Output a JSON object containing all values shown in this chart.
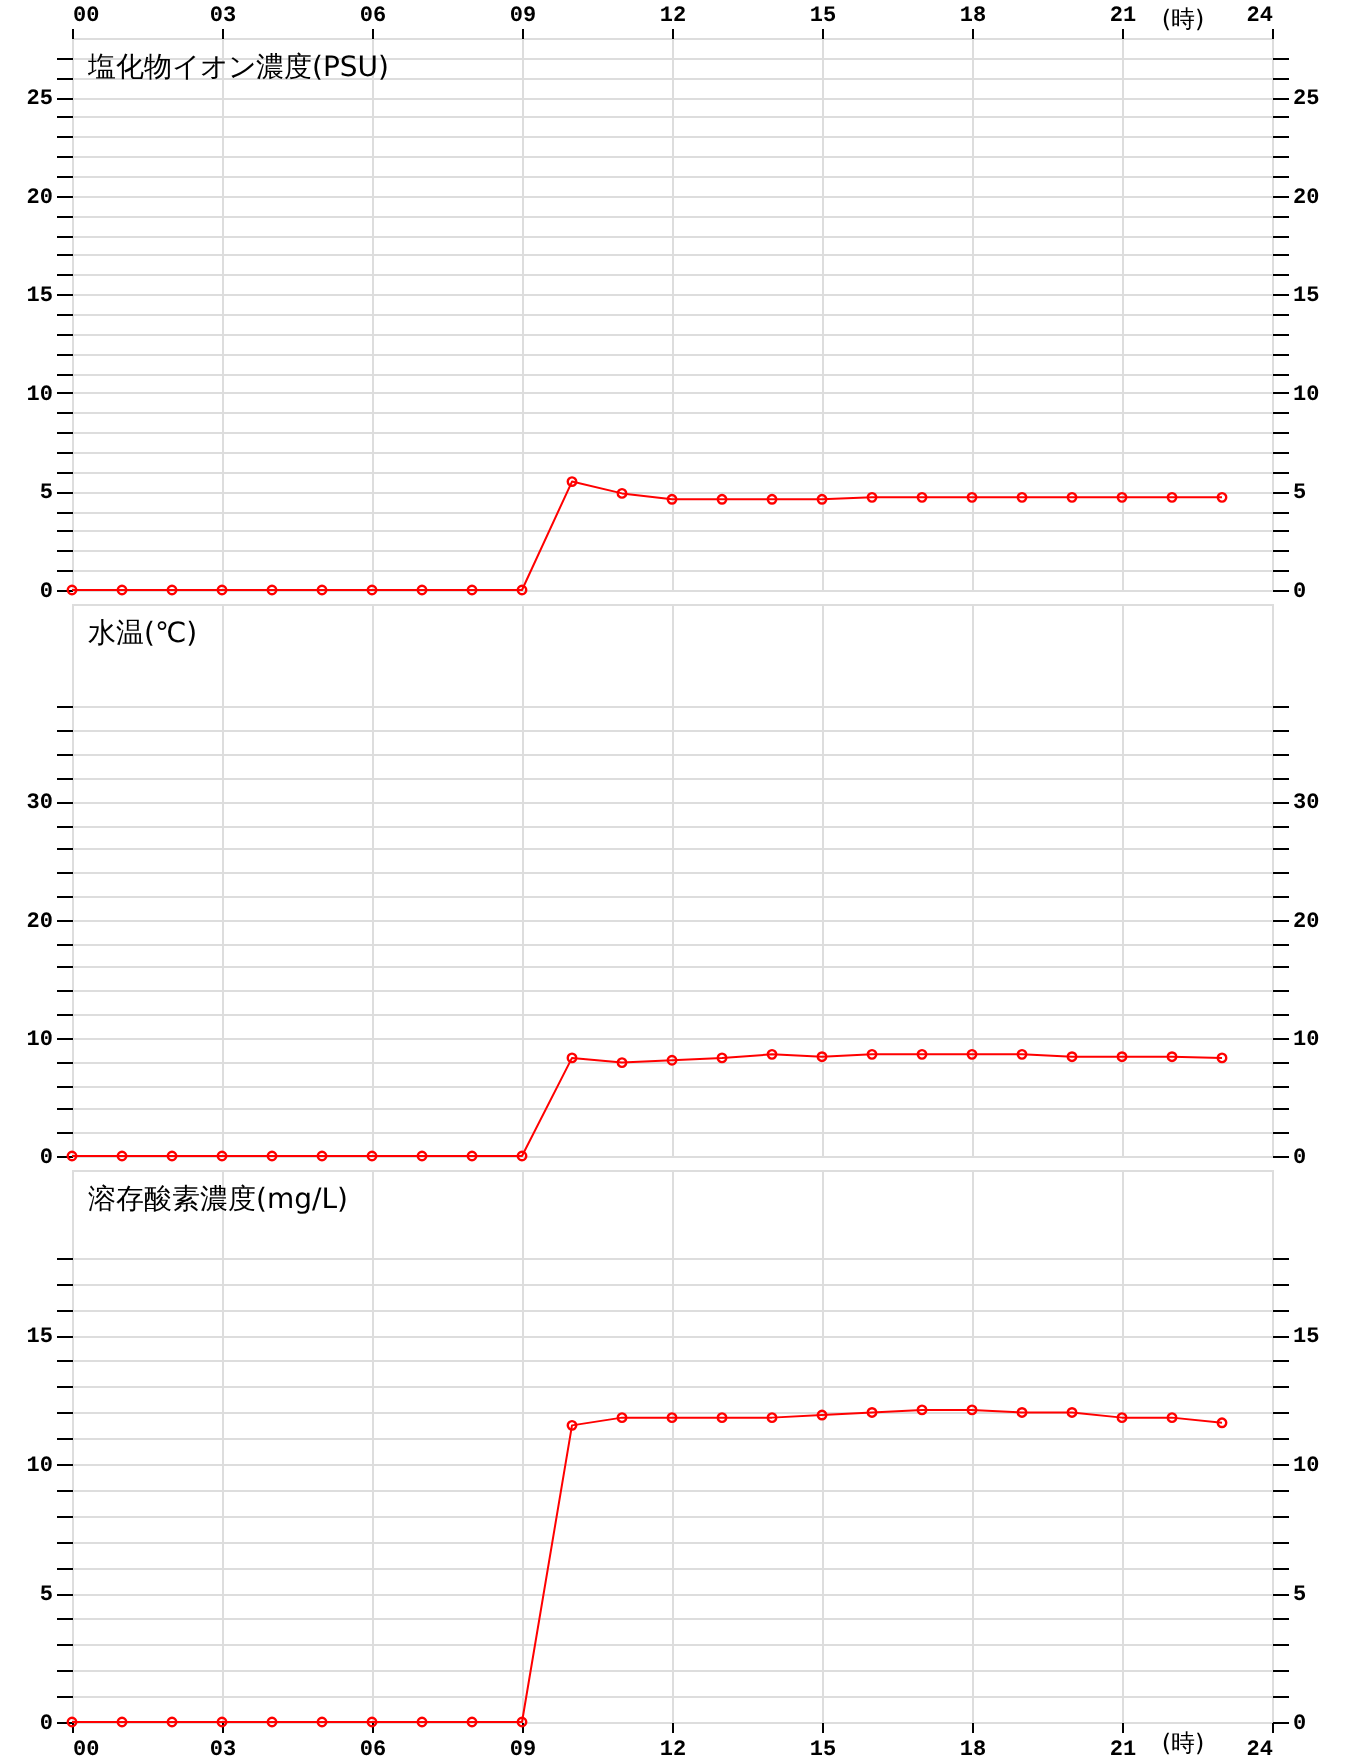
{
  "chart_data": [
    {
      "type": "line",
      "title": "塩化物イオン濃度(PSU)",
      "x": [
        0,
        1,
        2,
        3,
        4,
        5,
        6,
        7,
        8,
        9,
        10,
        11,
        12,
        13,
        14,
        15,
        16,
        17,
        18,
        19,
        20,
        21,
        22,
        23
      ],
      "series": [
        {
          "color": "#ff0000",
          "values": [
            0,
            0,
            0,
            0,
            0,
            0,
            0,
            0,
            0,
            0,
            5.5,
            4.9,
            4.6,
            4.6,
            4.6,
            4.6,
            4.7,
            4.7,
            4.7,
            4.7,
            4.7,
            4.7,
            4.7,
            4.7
          ]
        }
      ],
      "xlim": [
        0,
        24
      ],
      "xticks": [
        {
          "value": 0,
          "label": "00"
        },
        {
          "value": 3,
          "label": "03"
        },
        {
          "value": 6,
          "label": "06"
        },
        {
          "value": 9,
          "label": "09"
        },
        12,
        15,
        18,
        21,
        24
      ],
      "xlabel": "(時)",
      "ylim": [
        0,
        28
      ],
      "yticks": [
        0,
        {
          "value": 1,
          "label": null
        },
        {
          "value": 2,
          "label": null
        },
        {
          "value": 3,
          "label": null
        },
        {
          "value": 4,
          "label": null
        },
        5,
        {
          "value": 6,
          "label": null
        },
        {
          "value": 7,
          "label": null
        },
        {
          "value": 8,
          "label": null
        },
        {
          "value": 9,
          "label": null
        },
        10,
        {
          "value": 11,
          "label": null
        },
        {
          "value": 12,
          "label": null
        },
        {
          "value": 13,
          "label": null
        },
        {
          "value": 14,
          "label": null
        },
        15,
        {
          "value": 16,
          "label": null
        },
        {
          "value": 17,
          "label": null
        },
        {
          "value": 18,
          "label": null
        },
        {
          "value": 19,
          "label": null
        },
        20,
        {
          "value": 21,
          "label": null
        },
        {
          "value": 22,
          "label": null
        },
        {
          "value": 23,
          "label": null
        },
        {
          "value": 24,
          "label": null
        },
        25,
        {
          "value": 26,
          "label": null
        },
        {
          "value": 27,
          "label": null
        }
      ],
      "y2lim": [
        0,
        28
      ],
      "y2ticks": [
        0,
        {
          "value": 1,
          "label": null
        },
        {
          "value": 2,
          "label": null
        },
        {
          "value": 3,
          "label": null
        },
        {
          "value": 4,
          "label": null
        },
        5,
        {
          "value": 6,
          "label": null
        },
        {
          "value": 7,
          "label": null
        },
        {
          "value": 8,
          "label": null
        },
        {
          "value": 9,
          "label": null
        },
        10,
        {
          "value": 11,
          "label": null
        },
        {
          "value": 12,
          "label": null
        },
        {
          "value": 13,
          "label": null
        },
        {
          "value": 14,
          "label": null
        },
        15,
        {
          "value": 16,
          "label": null
        },
        {
          "value": 17,
          "label": null
        },
        {
          "value": 18,
          "label": null
        },
        {
          "value": 19,
          "label": null
        },
        20,
        {
          "value": 21,
          "label": null
        },
        {
          "value": 22,
          "label": null
        },
        {
          "value": 23,
          "label": null
        },
        {
          "value": 24,
          "label": null
        },
        25,
        {
          "value": 26,
          "label": null
        },
        {
          "value": 27,
          "label": null
        }
      ],
      "grid": true,
      "marker": "circle",
      "line_style": "solid"
    },
    {
      "type": "line",
      "title": "水温(℃)",
      "categories": [
        null,
        null,
        null,
        null,
        null,
        null,
        null,
        null,
        null,
        null,
        null,
        null,
        null,
        null,
        null,
        null,
        null,
        null,
        null,
        null,
        null,
        null,
        null,
        null
      ],
      "series": [
        {
          "color": "#ff0000",
          "values": [
            0,
            0,
            0,
            0,
            0,
            0,
            0,
            0,
            0,
            0,
            8.3,
            7.9,
            8.1,
            8.3,
            8.6,
            8.4,
            8.6,
            8.6,
            8.6,
            8.6,
            8.4,
            8.4,
            8.4,
            8.3
          ]
        }
      ],
      "ylim": [
        0,
        46.7
      ],
      "yticks": [
        0,
        {
          "value": 2,
          "label": null
        },
        {
          "value": 4,
          "label": null
        },
        {
          "value": 6,
          "label": null
        },
        {
          "value": 8,
          "label": null
        },
        10,
        {
          "value": 12,
          "label": null
        },
        {
          "value": 14,
          "label": null
        },
        {
          "value": 16,
          "label": null
        },
        {
          "value": 18,
          "label": null
        },
        20,
        {
          "value": 22,
          "label": null
        },
        {
          "value": 24,
          "label": null
        },
        {
          "value": 26,
          "label": null
        },
        {
          "value": 28,
          "label": null
        },
        30,
        {
          "value": 32,
          "label": null
        },
        {
          "value": 34,
          "label": null
        },
        {
          "value": 36,
          "label": null
        },
        {
          "value": 38,
          "label": null
        }
      ],
      "y2lim": [
        0,
        46.7
      ],
      "y2ticks": [
        0,
        {
          "value": 2,
          "label": null
        },
        {
          "value": 4,
          "label": null
        },
        {
          "value": 6,
          "label": null
        },
        {
          "value": 8,
          "label": null
        },
        10,
        {
          "value": 12,
          "label": null
        },
        {
          "value": 14,
          "label": null
        },
        {
          "value": 16,
          "label": null
        },
        {
          "value": 18,
          "label": null
        },
        20,
        {
          "value": 22,
          "label": null
        },
        {
          "value": 24,
          "label": null
        },
        {
          "value": 26,
          "label": null
        },
        {
          "value": 28,
          "label": null
        },
        30,
        {
          "value": 32,
          "label": null
        },
        {
          "value": 34,
          "label": null
        },
        {
          "value": 36,
          "label": null
        },
        {
          "value": 38,
          "label": null
        }
      ],
      "grid": true,
      "marker": "circle",
      "line_style": "solid"
    },
    {
      "type": "line",
      "title": "溶存酸素濃度(mg/L)",
      "x": [
        0,
        1,
        2,
        3,
        4,
        5,
        6,
        7,
        8,
        9,
        10,
        11,
        12,
        13,
        14,
        15,
        16,
        17,
        18,
        19,
        20,
        21,
        22,
        23
      ],
      "series": [
        {
          "color": "#ff0000",
          "values": [
            0,
            0,
            0,
            0,
            0,
            0,
            0,
            0,
            0,
            0,
            11.5,
            11.8,
            11.8,
            11.8,
            11.8,
            11.9,
            12.0,
            12.1,
            12.1,
            12.0,
            12.0,
            11.8,
            11.8,
            11.6
          ]
        }
      ],
      "xlim": [
        0,
        24
      ],
      "xticks": [
        {
          "value": 0,
          "label": "00"
        },
        {
          "value": 3,
          "label": "03"
        },
        {
          "value": 6,
          "label": "06"
        },
        {
          "value": 9,
          "label": "09"
        },
        12,
        15,
        18,
        21,
        24
      ],
      "xlabel": "(時)",
      "ylim": [
        0,
        21.4
      ],
      "yticks": [
        0,
        {
          "value": 1,
          "label": null
        },
        {
          "value": 2,
          "label": null
        },
        {
          "value": 3,
          "label": null
        },
        {
          "value": 4,
          "label": null
        },
        5,
        {
          "value": 6,
          "label": null
        },
        {
          "value": 7,
          "label": null
        },
        {
          "value": 8,
          "label": null
        },
        {
          "value": 9,
          "label": null
        },
        10,
        {
          "value": 11,
          "label": null
        },
        {
          "value": 12,
          "label": null
        },
        {
          "value": 13,
          "label": null
        },
        {
          "value": 14,
          "label": null
        },
        15,
        {
          "value": 16,
          "label": null
        },
        {
          "value": 17,
          "label": null
        },
        {
          "value": 18,
          "label": null
        }
      ],
      "y2lim": [
        0,
        21.4
      ],
      "y2ticks": [
        0,
        {
          "value": 1,
          "label": null
        },
        {
          "value": 2,
          "label": null
        },
        {
          "value": 3,
          "label": null
        },
        {
          "value": 4,
          "label": null
        },
        5,
        {
          "value": 6,
          "label": null
        },
        {
          "value": 7,
          "label": null
        },
        {
          "value": 8,
          "label": null
        },
        {
          "value": 9,
          "label": null
        },
        10,
        {
          "value": 11,
          "label": null
        },
        {
          "value": 12,
          "label": null
        },
        {
          "value": 13,
          "label": null
        },
        {
          "value": 14,
          "label": null
        },
        15,
        {
          "value": 16,
          "label": null
        },
        {
          "value": 17,
          "label": null
        },
        {
          "value": 18,
          "label": null
        }
      ],
      "grid": true,
      "marker": "circle",
      "line_style": "solid"
    }
  ]
}
